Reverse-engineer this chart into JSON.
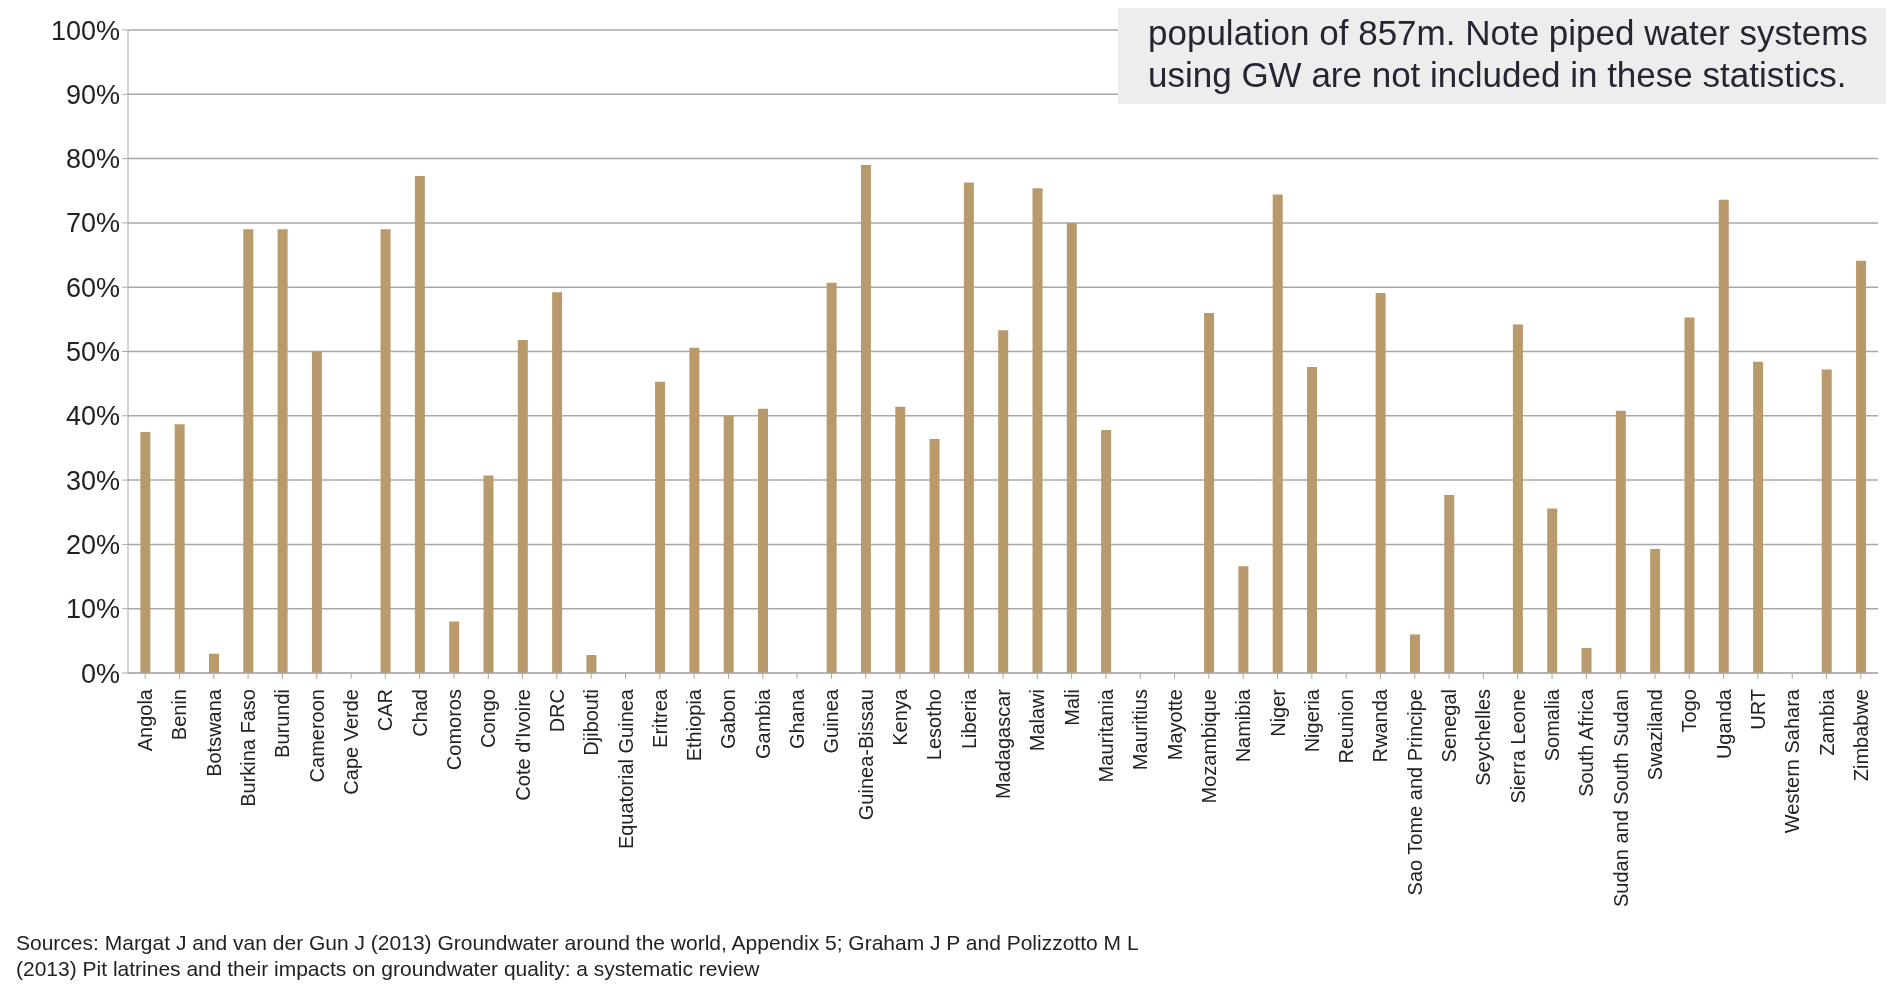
{
  "chart_data": {
    "type": "bar",
    "categories": [
      "Angola",
      "Benin",
      "Botswana",
      "Burkina Faso",
      "Burundi",
      "Cameroon",
      "Cape Verde",
      "CAR",
      "Chad",
      "Comoros",
      "Congo",
      "Cote d'Ivoire",
      "DRC",
      "Djibouti",
      "Equatorial Guinea",
      "Eritrea",
      "Ethiopia",
      "Gabon",
      "Gambia",
      "Ghana",
      "Guinea",
      "Guinea-Bissau",
      "Kenya",
      "Lesotho",
      "Liberia",
      "Madagascar",
      "Malawi",
      "Mali",
      "Mauritania",
      "Mauritius",
      "Mayotte",
      "Mozambique",
      "Namibia",
      "Niger",
      "Nigeria",
      "Reunion",
      "Rwanda",
      "Sao Tome and Principe",
      "Senegal",
      "Seychelles",
      "Sierra Leone",
      "Somalia",
      "South Africa",
      "Sudan and South Sudan",
      "Swaziland",
      "Togo",
      "Uganda",
      "URT",
      "Western Sahara",
      "Zambia",
      "Zimbabwe"
    ],
    "values": [
      37.5,
      38.7,
      3,
      69,
      69,
      50,
      null,
      69,
      77.3,
      8,
      30.7,
      51.8,
      59.2,
      2.8,
      null,
      45.3,
      50.6,
      40,
      41.1,
      null,
      60.7,
      79,
      41.4,
      36.4,
      76.3,
      53.3,
      75.4,
      70,
      37.8,
      null,
      null,
      56,
      16.6,
      74.4,
      47.6,
      null,
      59.1,
      6,
      27.7,
      null,
      54.2,
      25.6,
      3.9,
      40.8,
      19.3,
      55.3,
      73.6,
      48.4,
      null,
      47.2,
      64.1
    ],
    "color": "#b99a6c",
    "ylim": [
      0,
      100
    ],
    "yticks": [
      {
        "value": 0,
        "label": "0%"
      },
      {
        "value": 10,
        "label": "10%"
      },
      {
        "value": 20,
        "label": "20%"
      },
      {
        "value": 30,
        "label": "30%"
      },
      {
        "value": 40,
        "label": "40%"
      },
      {
        "value": 50,
        "label": "50%"
      },
      {
        "value": 60,
        "label": "60%"
      },
      {
        "value": 70,
        "label": "70%"
      },
      {
        "value": 80,
        "label": "80%"
      },
      {
        "value": 90,
        "label": "90%"
      },
      {
        "value": 100,
        "label": "100%"
      }
    ],
    "grid": "y",
    "annotations": [
      "population of 857m.  Note piped water systems using GW are not included in these statistics.",
      "Sources: Margat J and van der Gun J (2013) Groundwater around the world, Appendix 5;  Graham J P and Polizzotto M L (2013) Pit latrines and their impacts on groundwater quality: a systematic review"
    ]
  }
}
